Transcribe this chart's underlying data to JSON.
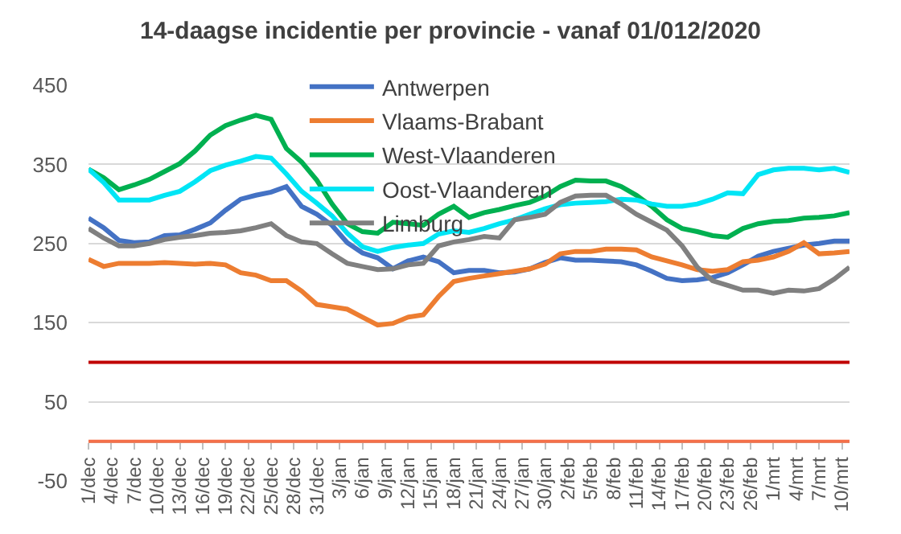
{
  "chart_data": {
    "type": "line",
    "title": "14-daagse incidentie per provincie - vanaf 01/012/2020",
    "x": [
      "2020-12-01",
      "2020-12-03",
      "2020-12-05",
      "2020-12-07",
      "2020-12-09",
      "2020-12-11",
      "2020-12-13",
      "2020-12-15",
      "2020-12-17",
      "2020-12-19",
      "2020-12-21",
      "2020-12-23",
      "2020-12-25",
      "2020-12-27",
      "2020-12-29",
      "2020-12-31",
      "2021-01-02",
      "2021-01-04",
      "2021-01-06",
      "2021-01-08",
      "2021-01-10",
      "2021-01-12",
      "2021-01-14",
      "2021-01-16",
      "2021-01-18",
      "2021-01-20",
      "2021-01-22",
      "2021-01-24",
      "2021-01-26",
      "2021-01-28",
      "2021-01-30",
      "2021-02-01",
      "2021-02-03",
      "2021-02-05",
      "2021-02-07",
      "2021-02-09",
      "2021-02-11",
      "2021-02-13",
      "2021-02-15",
      "2021-02-17",
      "2021-02-19",
      "2021-02-21",
      "2021-02-23",
      "2021-02-25",
      "2021-02-27",
      "2021-03-01",
      "2021-03-03",
      "2021-03-05",
      "2021-03-07",
      "2021-03-09",
      "2021-03-11"
    ],
    "series": [
      {
        "name": "Antwerpen",
        "color": "#4472c4",
        "values": [
          282,
          270,
          254,
          251,
          252,
          260,
          261,
          268,
          276,
          292,
          306,
          311,
          315,
          322,
          297,
          287,
          273,
          251,
          238,
          232,
          218,
          228,
          233,
          227,
          213,
          216,
          216,
          213,
          214,
          218,
          226,
          232,
          229,
          229,
          228,
          227,
          223,
          215,
          206,
          203,
          204,
          207,
          213,
          223,
          234,
          240,
          244,
          248,
          250,
          253,
          253
        ]
      },
      {
        "name": "Vlaams-Brabant",
        "color": "#ed7d31",
        "values": [
          230,
          221,
          225,
          225,
          225,
          226,
          225,
          224,
          225,
          223,
          213,
          210,
          203,
          203,
          190,
          173,
          170,
          167,
          157,
          147,
          149,
          157,
          160,
          183,
          202,
          206,
          209,
          212,
          215,
          218,
          224,
          237,
          240,
          240,
          243,
          243,
          242,
          233,
          228,
          223,
          217,
          215,
          217,
          227,
          229,
          233,
          240,
          251,
          237,
          238,
          240
        ]
      },
      {
        "name": "West-Vlaanderen",
        "color": "#00b050",
        "values": [
          344,
          333,
          318,
          324,
          331,
          341,
          351,
          367,
          387,
          399,
          406,
          412,
          407,
          370,
          353,
          330,
          300,
          275,
          265,
          263,
          277,
          275,
          273,
          287,
          297,
          283,
          289,
          293,
          298,
          302,
          310,
          322,
          330,
          329,
          329,
          322,
          311,
          297,
          280,
          269,
          265,
          260,
          258,
          269,
          275,
          278,
          279,
          282,
          283,
          285,
          289
        ]
      },
      {
        "name": "Oost-Vlaanderen",
        "color": "#00e5f5",
        "values": [
          344,
          327,
          305,
          305,
          305,
          311,
          316,
          328,
          342,
          349,
          354,
          360,
          358,
          338,
          316,
          301,
          285,
          263,
          246,
          240,
          245,
          248,
          250,
          262,
          266,
          264,
          269,
          275,
          280,
          287,
          294,
          299,
          301,
          302,
          303,
          306,
          305,
          300,
          297,
          297,
          300,
          306,
          314,
          313,
          337,
          343,
          345,
          345,
          343,
          345,
          340
        ]
      },
      {
        "name": "Limburg",
        "color": "#808080",
        "values": [
          269,
          257,
          247,
          247,
          250,
          255,
          258,
          260,
          263,
          264,
          266,
          270,
          275,
          260,
          252,
          250,
          237,
          225,
          221,
          217,
          218,
          223,
          225,
          247,
          252,
          255,
          259,
          257,
          280,
          283,
          287,
          302,
          310,
          311,
          311,
          300,
          287,
          277,
          267,
          247,
          220,
          203,
          197,
          191,
          191,
          187,
          191,
          190,
          193,
          205,
          220
        ]
      }
    ],
    "ref_lines": [
      {
        "axis": "y",
        "value": 100,
        "color": "#c00000"
      },
      {
        "axis": "y",
        "value": 0,
        "color": "#f4704a"
      }
    ],
    "xlim": [
      "2020-12-01",
      "2021-03-11"
    ],
    "xticks": [
      {
        "value": "2020-12-01",
        "label": "1/dec"
      },
      {
        "value": "2020-12-04",
        "label": "4/dec"
      },
      {
        "value": "2020-12-07",
        "label": "7/dec"
      },
      {
        "value": "2020-12-10",
        "label": "10/dec"
      },
      {
        "value": "2020-12-13",
        "label": "13/dec"
      },
      {
        "value": "2020-12-16",
        "label": "16/dec"
      },
      {
        "value": "2020-12-19",
        "label": "19/dec"
      },
      {
        "value": "2020-12-22",
        "label": "22/dec"
      },
      {
        "value": "2020-12-25",
        "label": "25/dec"
      },
      {
        "value": "2020-12-28",
        "label": "28/dec"
      },
      {
        "value": "2020-12-31",
        "label": "31/dec"
      },
      {
        "value": "2021-01-03",
        "label": "3/jan"
      },
      {
        "value": "2021-01-06",
        "label": "6/jan"
      },
      {
        "value": "2021-01-09",
        "label": "9/jan"
      },
      {
        "value": "2021-01-12",
        "label": "12/jan"
      },
      {
        "value": "2021-01-15",
        "label": "15/jan"
      },
      {
        "value": "2021-01-18",
        "label": "18/jan"
      },
      {
        "value": "2021-01-21",
        "label": "21/jan"
      },
      {
        "value": "2021-01-24",
        "label": "24/jan"
      },
      {
        "value": "2021-01-27",
        "label": "27/jan"
      },
      {
        "value": "2021-01-30",
        "label": "30/jan"
      },
      {
        "value": "2021-02-02",
        "label": "2/feb"
      },
      {
        "value": "2021-02-05",
        "label": "5/feb"
      },
      {
        "value": "2021-02-08",
        "label": "8/feb"
      },
      {
        "value": "2021-02-11",
        "label": "11/feb"
      },
      {
        "value": "2021-02-14",
        "label": "14/feb"
      },
      {
        "value": "2021-02-17",
        "label": "17/feb"
      },
      {
        "value": "2021-02-20",
        "label": "20/feb"
      },
      {
        "value": "2021-02-23",
        "label": "23/feb"
      },
      {
        "value": "2021-02-26",
        "label": "26/feb"
      },
      {
        "value": "2021-03-01",
        "label": "1/mrt"
      },
      {
        "value": "2021-03-04",
        "label": "4/mrt"
      },
      {
        "value": "2021-03-07",
        "label": "7/mrt"
      },
      {
        "value": "2021-03-10",
        "label": "10/mrt"
      }
    ],
    "ylim": [
      -50,
      450
    ],
    "yticks": [
      -50,
      50,
      150,
      250,
      350,
      450
    ],
    "grid": "y",
    "legend": "top",
    "marker": "none",
    "line_style": "solid"
  }
}
